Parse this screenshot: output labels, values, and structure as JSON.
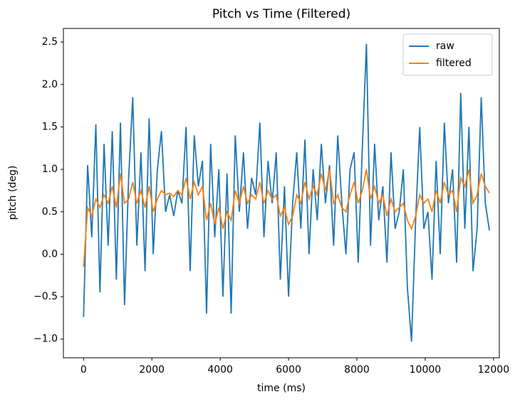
{
  "chart_data": {
    "type": "line",
    "title": "Pitch vs Time (Filtered)",
    "xlabel": "time (ms)",
    "ylabel": "pitch (deg)",
    "x": [
      0,
      120,
      240,
      360,
      480,
      600,
      720,
      840,
      960,
      1080,
      1200,
      1320,
      1440,
      1560,
      1680,
      1800,
      1920,
      2040,
      2160,
      2280,
      2400,
      2520,
      2640,
      2760,
      2880,
      3000,
      3120,
      3240,
      3360,
      3480,
      3600,
      3720,
      3840,
      3960,
      4080,
      4200,
      4320,
      4440,
      4560,
      4680,
      4800,
      4920,
      5040,
      5160,
      5280,
      5400,
      5520,
      5640,
      5760,
      5880,
      6000,
      6120,
      6240,
      6360,
      6480,
      6600,
      6720,
      6840,
      6960,
      7080,
      7200,
      7320,
      7440,
      7560,
      7680,
      7800,
      7920,
      8040,
      8160,
      8280,
      8400,
      8520,
      8640,
      8760,
      8880,
      9000,
      9120,
      9240,
      9360,
      9480,
      9600,
      9720,
      9840,
      9960,
      10080,
      10200,
      10320,
      10440,
      10560,
      10680,
      10800,
      10920,
      11040,
      11160,
      11280,
      11400,
      11520,
      11640,
      11760,
      11880
    ],
    "series": [
      {
        "name": "raw",
        "color": "#1f77b4",
        "values": [
          -0.74,
          1.05,
          0.2,
          1.53,
          -0.45,
          1.3,
          0.1,
          1.45,
          -0.3,
          1.55,
          -0.6,
          0.9,
          1.85,
          0.1,
          1.2,
          -0.2,
          1.6,
          0.0,
          1.0,
          1.45,
          0.5,
          0.7,
          0.45,
          0.75,
          0.6,
          1.5,
          -0.2,
          1.4,
          0.8,
          1.1,
          -0.7,
          1.3,
          0.2,
          1.0,
          -0.5,
          0.95,
          -0.7,
          1.4,
          0.5,
          1.2,
          0.3,
          0.9,
          0.7,
          1.55,
          0.2,
          1.1,
          0.6,
          1.2,
          -0.3,
          0.8,
          -0.5,
          0.6,
          1.2,
          0.3,
          1.35,
          0.0,
          1.0,
          0.4,
          1.3,
          0.6,
          1.05,
          0.1,
          1.4,
          0.6,
          0.0,
          1.0,
          1.2,
          -0.1,
          1.25,
          2.48,
          0.1,
          1.3,
          0.4,
          0.8,
          -0.1,
          1.2,
          0.3,
          0.5,
          1.0,
          -0.4,
          -1.03,
          0.4,
          1.5,
          0.3,
          0.5,
          -0.3,
          1.1,
          0.0,
          1.55,
          0.6,
          1.0,
          -0.1,
          1.9,
          0.3,
          1.5,
          -0.2,
          0.3,
          1.85,
          0.6,
          0.28
        ]
      },
      {
        "name": "filtered",
        "color": "#ff7f0e",
        "values": [
          -0.15,
          0.55,
          0.45,
          0.65,
          0.55,
          0.7,
          0.6,
          0.8,
          0.55,
          0.95,
          0.6,
          0.65,
          0.85,
          0.6,
          0.75,
          0.55,
          0.8,
          0.5,
          0.65,
          0.75,
          0.7,
          0.72,
          0.68,
          0.75,
          0.7,
          0.9,
          0.65,
          0.85,
          0.7,
          0.8,
          0.4,
          0.6,
          0.35,
          0.55,
          0.3,
          0.5,
          0.4,
          0.75,
          0.6,
          0.8,
          0.6,
          0.7,
          0.65,
          0.85,
          0.6,
          0.75,
          0.65,
          0.7,
          0.45,
          0.55,
          0.35,
          0.45,
          0.7,
          0.6,
          0.85,
          0.65,
          0.8,
          0.7,
          0.95,
          0.75,
          1.0,
          0.6,
          0.7,
          0.55,
          0.5,
          0.7,
          0.85,
          0.6,
          0.75,
          1.0,
          0.65,
          0.8,
          0.6,
          0.7,
          0.45,
          0.65,
          0.5,
          0.55,
          0.6,
          0.4,
          0.3,
          0.45,
          0.7,
          0.6,
          0.65,
          0.5,
          0.75,
          0.6,
          0.85,
          0.7,
          0.75,
          0.5,
          0.9,
          0.8,
          1.0,
          0.6,
          0.7,
          0.95,
          0.8,
          0.72
        ]
      }
    ],
    "xlim": [
      -590,
      12170
    ],
    "xticks": [
      0,
      2000,
      4000,
      6000,
      8000,
      10000,
      12000
    ],
    "ylim": [
      -1.22,
      2.66
    ],
    "yticks": [
      {
        "value": -1,
        "label": "−1.0"
      },
      {
        "value": -0.5,
        "label": "−0.5"
      },
      {
        "value": 0,
        "label": "0.0"
      },
      0.5,
      {
        "value": 1,
        "label": "1.0"
      },
      1.5,
      {
        "value": 2,
        "label": "2.0"
      },
      2.5
    ],
    "legend": "upper right"
  }
}
